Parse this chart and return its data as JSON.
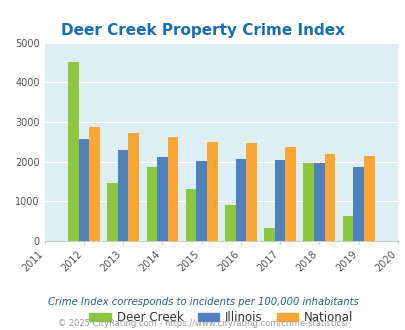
{
  "title": "Deer Creek Property Crime Index",
  "years": [
    2012,
    2013,
    2014,
    2015,
    2016,
    2017,
    2018,
    2019
  ],
  "deer_creek": [
    4520,
    1450,
    1870,
    1310,
    900,
    320,
    1960,
    630
  ],
  "illinois": [
    2580,
    2300,
    2110,
    2020,
    2080,
    2050,
    1970,
    1860
  ],
  "national": [
    2880,
    2730,
    2620,
    2490,
    2460,
    2360,
    2200,
    2140
  ],
  "colors": {
    "deer_creek": "#8dc63f",
    "illinois": "#4f81bd",
    "national": "#faa634"
  },
  "bg_color": "#ddeef4",
  "ylim": [
    0,
    5000
  ],
  "yticks": [
    0,
    1000,
    2000,
    3000,
    4000,
    5000
  ],
  "xlim_min": 2011,
  "xlim_max": 2020,
  "xlabel_note": "Crime Index corresponds to incidents per 100,000 inhabitants",
  "footer": "© 2025 CityRating.com - https://www.cityrating.com/crime-statistics/",
  "legend_labels": [
    "Deer Creek",
    "Illinois",
    "National"
  ],
  "bar_width": 0.27,
  "title_color": "#1a6db5",
  "note_color": "#2c5f8a",
  "footer_color": "#9a9a9a"
}
